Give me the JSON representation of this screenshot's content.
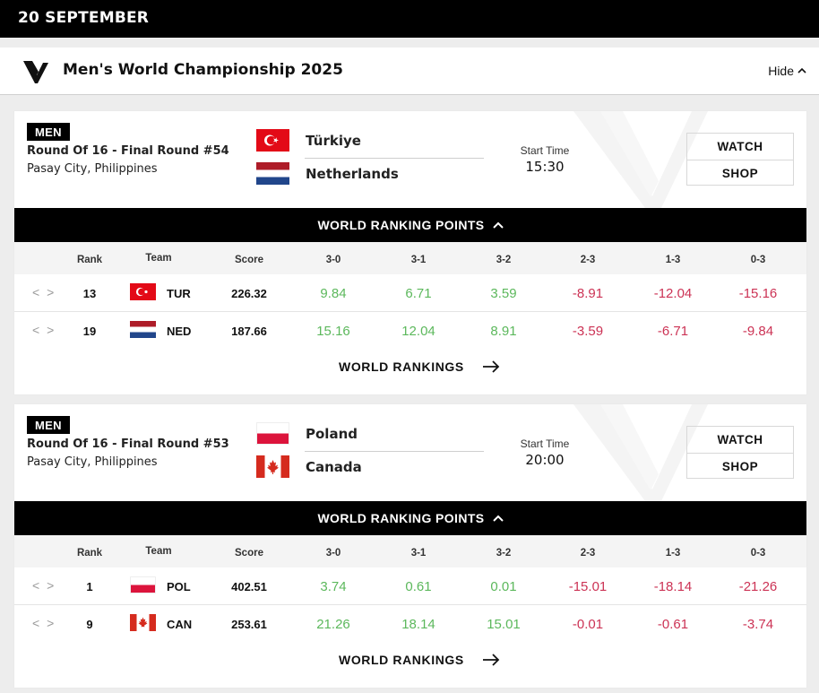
{
  "date_header": "20 SEPTEMBER",
  "championship": {
    "title": "Men's World Championship 2025",
    "hide_label": "Hide"
  },
  "table_headers": {
    "rank": "Rank",
    "team": "Team",
    "score": "Score",
    "results": [
      "3-0",
      "3-1",
      "3-2",
      "2-3",
      "1-3",
      "0-3"
    ]
  },
  "matches": [
    {
      "category": "MEN",
      "round": "Round Of 16 - Final Round #54",
      "venue": "Pasay City, Philippines",
      "team1": {
        "name": "Türkiye",
        "flag": "turkey-flag"
      },
      "team2": {
        "name": "Netherlands",
        "flag": "netherlands-flag"
      },
      "start_time_label": "Start Time",
      "start_time": "15:30",
      "watch_label": "WATCH",
      "shop_label": "SHOP",
      "ranking_points_label": "WORLD RANKING POINTS",
      "world_rankings_link": "WORLD RANKINGS",
      "rows": [
        {
          "rank": "13",
          "code": "TUR",
          "flag": "turkey-flag",
          "score": "226.32",
          "points": [
            "9.84",
            "6.71",
            "3.59",
            "-8.91",
            "-12.04",
            "-15.16"
          ]
        },
        {
          "rank": "19",
          "code": "NED",
          "flag": "netherlands-flag",
          "score": "187.66",
          "points": [
            "15.16",
            "12.04",
            "8.91",
            "-3.59",
            "-6.71",
            "-9.84"
          ]
        }
      ]
    },
    {
      "category": "MEN",
      "round": "Round Of 16 - Final Round #53",
      "venue": "Pasay City, Philippines",
      "team1": {
        "name": "Poland",
        "flag": "poland-flag"
      },
      "team2": {
        "name": "Canada",
        "flag": "canada-flag"
      },
      "start_time_label": "Start Time",
      "start_time": "20:00",
      "watch_label": "WATCH",
      "shop_label": "SHOP",
      "ranking_points_label": "WORLD RANKING POINTS",
      "world_rankings_link": "WORLD RANKINGS",
      "rows": [
        {
          "rank": "1",
          "code": "POL",
          "flag": "poland-flag",
          "score": "402.51",
          "points": [
            "3.74",
            "0.61",
            "0.01",
            "-15.01",
            "-18.14",
            "-21.26"
          ]
        },
        {
          "rank": "9",
          "code": "CAN",
          "flag": "canada-flag",
          "score": "253.61",
          "points": [
            "21.26",
            "18.14",
            "15.01",
            "-0.01",
            "-0.61",
            "-3.74"
          ]
        }
      ]
    }
  ],
  "colors": {
    "positive": "#5cb85c",
    "negative": "#cc3355",
    "header_bg": "#000000"
  }
}
